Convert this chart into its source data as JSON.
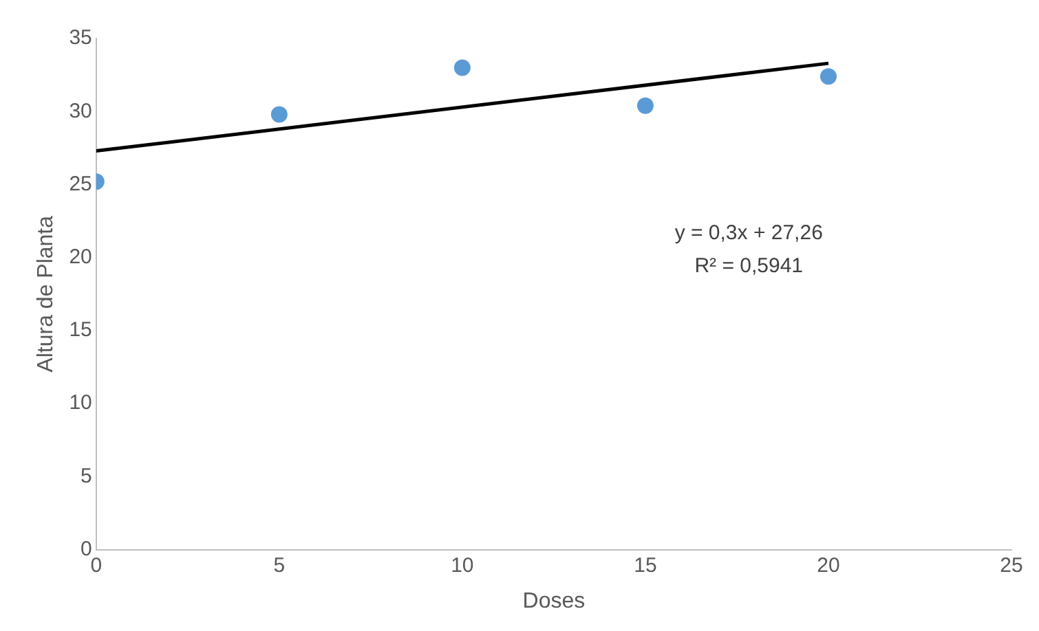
{
  "chart_data": {
    "type": "scatter",
    "xlabel": "Doses",
    "ylabel": "Altura de Planta",
    "x": [
      0,
      5,
      10,
      15,
      20
    ],
    "series": [
      {
        "color": "#5b9bd5",
        "marker": "circle",
        "values": [
          25.2,
          29.8,
          33.0,
          30.4,
          32.4
        ]
      },
      {
        "type": "line",
        "marker": "none",
        "color": "#000000",
        "x": [
          0,
          20
        ],
        "values": [
          27.3,
          33.3
        ]
      }
    ],
    "xlim": [
      0,
      25
    ],
    "xticks": [
      0,
      5,
      10,
      15,
      20,
      25
    ],
    "ylim": [
      0,
      35
    ],
    "yticks": [
      0,
      5,
      10,
      15,
      20,
      25,
      30,
      35
    ],
    "grid": false,
    "legend": false,
    "annotations": [
      "y = 0,3x + 27,26",
      "R² = 0,5941"
    ]
  }
}
